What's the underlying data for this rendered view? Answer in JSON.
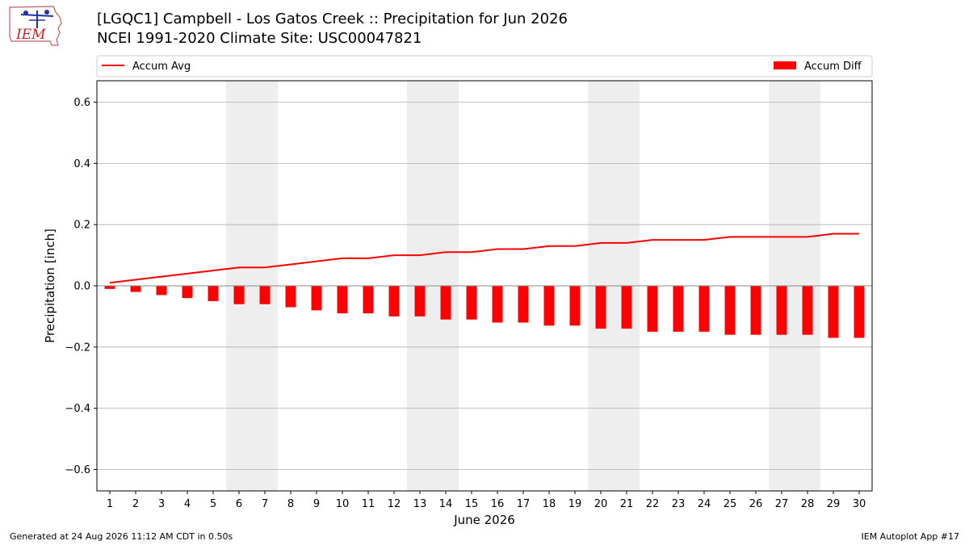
{
  "header": {
    "logo_text": "IEM",
    "title_line1": "[LGQC1] Campbell - Los Gatos Creek :: Precipitation for Jun 2026",
    "title_line2": "NCEI 1991-2020 Climate Site: USC00047821"
  },
  "footer": {
    "generated": "Generated at 24 Aug 2026 11:12 AM CDT in 0.50s",
    "app": "IEM Autoplot App #17"
  },
  "colors": {
    "series": "#ff0000",
    "weekend_band": "#eeeeee",
    "grid": "#b0b0b0"
  },
  "chart_data": {
    "type": "bar",
    "xlabel": "June 2026",
    "ylabel": "Precipitation [inch]",
    "ylim": [
      -0.67,
      0.67
    ],
    "yticks": [
      -0.6,
      -0.4,
      -0.2,
      0.0,
      0.2,
      0.4,
      0.6
    ],
    "ytick_labels": [
      "−0.6",
      "−0.4",
      "−0.2",
      "0.0",
      "0.2",
      "0.4",
      "0.6"
    ],
    "grid": "horizontal",
    "legend": "top, outside plot",
    "x": [
      1,
      2,
      3,
      4,
      5,
      6,
      7,
      8,
      9,
      10,
      11,
      12,
      13,
      14,
      15,
      16,
      17,
      18,
      19,
      20,
      21,
      22,
      23,
      24,
      25,
      26,
      27,
      28,
      29,
      30
    ],
    "weekend_days": [
      [
        6,
        7
      ],
      [
        13,
        14
      ],
      [
        20,
        21
      ],
      [
        27,
        28
      ]
    ],
    "series": [
      {
        "name": "Accum Avg",
        "kind": "line",
        "values": [
          0.01,
          0.02,
          0.03,
          0.04,
          0.05,
          0.06,
          0.06,
          0.07,
          0.08,
          0.09,
          0.09,
          0.1,
          0.1,
          0.11,
          0.11,
          0.12,
          0.12,
          0.13,
          0.13,
          0.14,
          0.14,
          0.15,
          0.15,
          0.15,
          0.16,
          0.16,
          0.16,
          0.16,
          0.17,
          0.17
        ]
      },
      {
        "name": "Accum Diff",
        "kind": "bar",
        "values": [
          -0.01,
          -0.02,
          -0.03,
          -0.04,
          -0.05,
          -0.06,
          -0.06,
          -0.07,
          -0.08,
          -0.09,
          -0.09,
          -0.1,
          -0.1,
          -0.11,
          -0.11,
          -0.12,
          -0.12,
          -0.13,
          -0.13,
          -0.14,
          -0.14,
          -0.15,
          -0.15,
          -0.15,
          -0.16,
          -0.16,
          -0.16,
          -0.16,
          -0.17,
          -0.17
        ]
      }
    ]
  }
}
